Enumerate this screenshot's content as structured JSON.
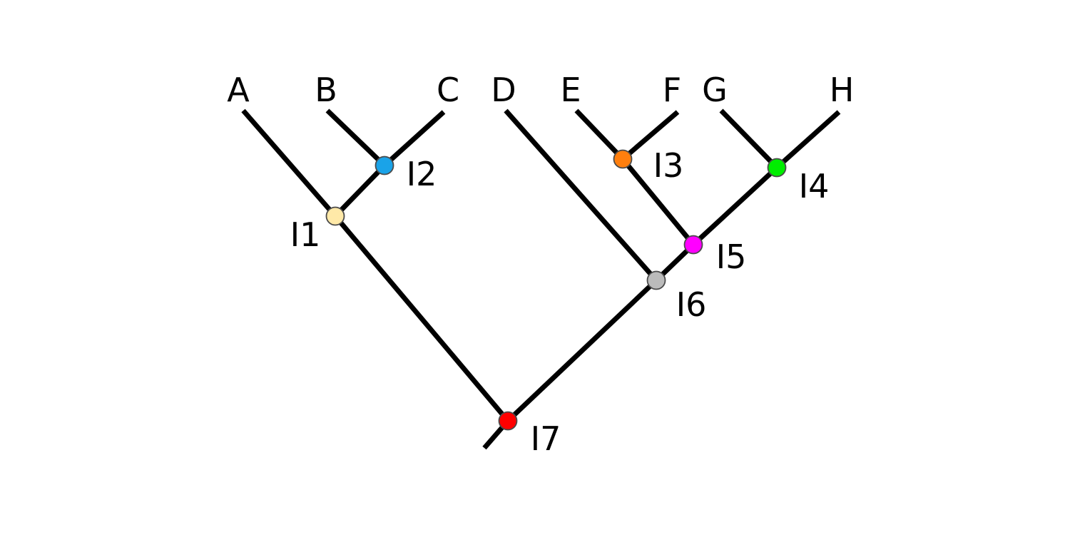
{
  "diagram": {
    "type": "phylogenetic-tree",
    "tips": [
      {
        "id": "A",
        "label": "A"
      },
      {
        "id": "B",
        "label": "B"
      },
      {
        "id": "C",
        "label": "C"
      },
      {
        "id": "D",
        "label": "D"
      },
      {
        "id": "E",
        "label": "E"
      },
      {
        "id": "F",
        "label": "F"
      },
      {
        "id": "G",
        "label": "G"
      },
      {
        "id": "H",
        "label": "H"
      }
    ],
    "internal_nodes": [
      {
        "id": "I1",
        "label": "I1",
        "color": "#ffe9a8"
      },
      {
        "id": "I2",
        "label": "I2",
        "color": "#1aa3e8"
      },
      {
        "id": "I3",
        "label": "I3",
        "color": "#ff7f0e"
      },
      {
        "id": "I4",
        "label": "I4",
        "color": "#00ee00"
      },
      {
        "id": "I5",
        "label": "I5",
        "color": "#ff00ff"
      },
      {
        "id": "I6",
        "label": "I6",
        "color": "#bbbbbb"
      },
      {
        "id": "I7",
        "label": "I7",
        "color": "#ff0000"
      }
    ],
    "edges": [
      {
        "parent": "I7",
        "child": "I1"
      },
      {
        "parent": "I7",
        "child": "I6"
      },
      {
        "parent": "I1",
        "child": "A"
      },
      {
        "parent": "I1",
        "child": "I2"
      },
      {
        "parent": "I2",
        "child": "B"
      },
      {
        "parent": "I2",
        "child": "C"
      },
      {
        "parent": "I6",
        "child": "D"
      },
      {
        "parent": "I6",
        "child": "I5"
      },
      {
        "parent": "I5",
        "child": "I3"
      },
      {
        "parent": "I5",
        "child": "I4"
      },
      {
        "parent": "I3",
        "child": "E"
      },
      {
        "parent": "I3",
        "child": "F"
      },
      {
        "parent": "I4",
        "child": "G"
      },
      {
        "parent": "I4",
        "child": "H"
      }
    ],
    "root": "I7",
    "branch_color": "#000000"
  }
}
